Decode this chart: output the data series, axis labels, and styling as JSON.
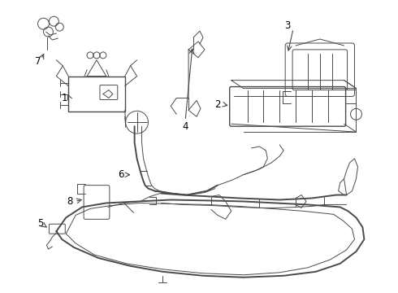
{
  "background_color": "#ffffff",
  "line_color": "#4a4a4a",
  "label_color": "#000000",
  "figure_width": 4.9,
  "figure_height": 3.6,
  "dpi": 100,
  "label_fontsize": 8.5
}
